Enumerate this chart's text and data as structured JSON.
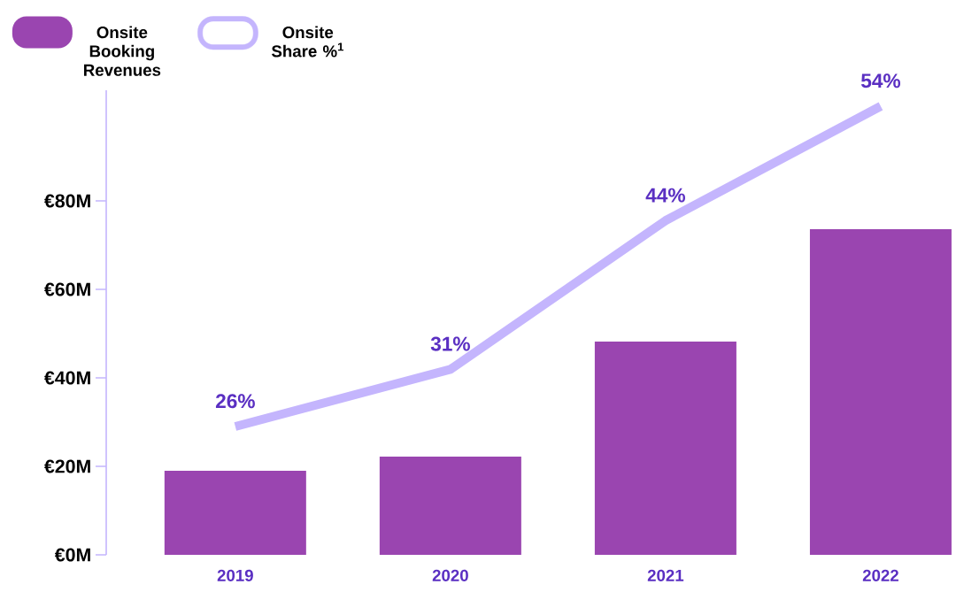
{
  "chart_data": {
    "type": "bar",
    "categories": [
      "2019",
      "2020",
      "2021",
      "2022"
    ],
    "series": [
      {
        "name": "Onsite Booking Revenues",
        "color": "#9a45b0",
        "values": [
          19,
          22.2,
          48.2,
          73.6
        ]
      },
      {
        "name": "Onsite Share %$^{1}$",
        "type": "line",
        "axis": "y2",
        "color": "#c4b5fd",
        "values": [
          26,
          31,
          44,
          54
        ],
        "value_labels": [
          "26%",
          "31%",
          "44%",
          "54%"
        ]
      }
    ],
    "ylim": [
      0,
      105
    ],
    "yticks": [
      {
        "value": 0,
        "label": "€0M"
      },
      {
        "value": 20,
        "label": "€20M"
      },
      {
        "value": 40,
        "label": "€40M"
      },
      {
        "value": 60,
        "label": "€60M"
      },
      {
        "value": 80,
        "label": "€80M"
      }
    ],
    "legend": "top left",
    "grid": false,
    "marker": "none",
    "line_style": "solid"
  }
}
